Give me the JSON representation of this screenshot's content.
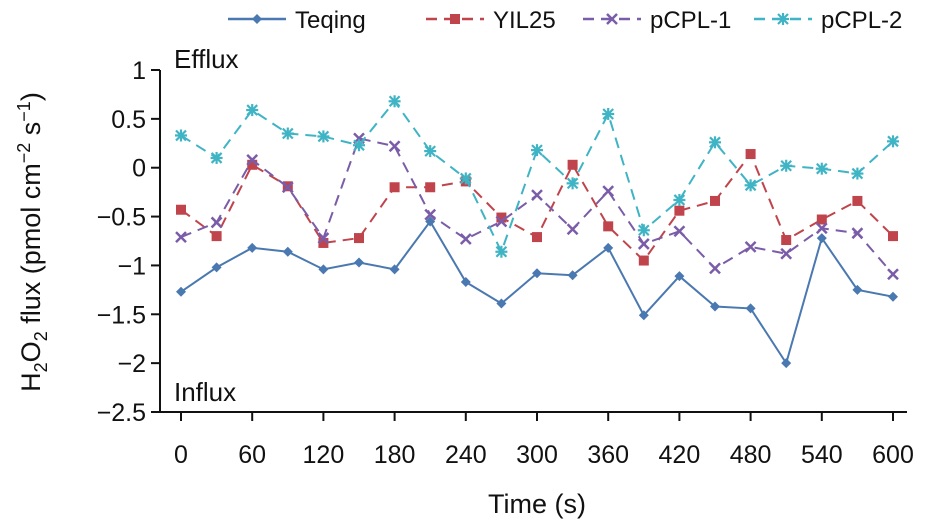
{
  "chart_data": {
    "type": "line",
    "x_label": "Time (s)",
    "y_label_parts": {
      "prefix": "H",
      "sub1": "2",
      "mid": "O",
      "sub2": "2",
      "text": " flux (pmol cm",
      "sup1": "−2",
      "text2": " s",
      "sup2": "−1",
      "end": ")"
    },
    "annotations": {
      "top": "Efflux",
      "bottom": "Influx"
    },
    "xlim": [
      0,
      600
    ],
    "ylim": [
      -2.5,
      1
    ],
    "x_ticks": [
      0,
      60,
      120,
      180,
      240,
      300,
      360,
      420,
      480,
      540,
      600
    ],
    "x_tick_labels": [
      "0",
      "60",
      "120",
      "180",
      "240",
      "300",
      "360",
      "420",
      "480",
      "540",
      "600"
    ],
    "y_ticks": [
      1,
      0.5,
      0,
      -0.5,
      -1,
      -1.5,
      -2,
      -2.5
    ],
    "y_tick_labels": [
      "1",
      "0.5",
      "0",
      "−0.5",
      "−1",
      "−1.5",
      "−2",
      "−2.5"
    ],
    "x": [
      0,
      30,
      60,
      90,
      120,
      150,
      180,
      210,
      240,
      270,
      300,
      330,
      360,
      390,
      420,
      450,
      480,
      510,
      540,
      570,
      600
    ],
    "legend_position": "top",
    "series": [
      {
        "name": "Teqing",
        "color": "#4a78b0",
        "marker": "diamond",
        "dash": "solid",
        "values": [
          -1.27,
          -1.02,
          -0.82,
          -0.86,
          -1.04,
          -0.97,
          -1.04,
          -0.55,
          -1.17,
          -1.39,
          -1.08,
          -1.1,
          -0.82,
          -1.51,
          -1.11,
          -1.42,
          -1.44,
          -2.0,
          -0.72,
          -1.25,
          -1.32
        ]
      },
      {
        "name": "YIL25",
        "color": "#c0444c",
        "marker": "square",
        "dash": "dashed",
        "values": [
          -0.43,
          -0.7,
          0.03,
          -0.19,
          -0.77,
          -0.72,
          -0.2,
          -0.2,
          -0.14,
          -0.51,
          -0.71,
          0.03,
          -0.6,
          -0.95,
          -0.44,
          -0.34,
          0.14,
          -0.74,
          -0.53,
          -0.34,
          -0.7
        ]
      },
      {
        "name": "pCPL-1",
        "color": "#7a5ca8",
        "marker": "x",
        "dash": "dashed",
        "values": [
          -0.71,
          -0.56,
          0.08,
          -0.2,
          -0.72,
          0.3,
          0.22,
          -0.48,
          -0.73,
          -0.55,
          -0.28,
          -0.63,
          -0.24,
          -0.78,
          -0.65,
          -1.03,
          -0.81,
          -0.88,
          -0.62,
          -0.67,
          -1.09
        ]
      },
      {
        "name": "pCPL-2",
        "color": "#3fb4c4",
        "marker": "asterisk",
        "dash": "dashed",
        "values": [
          0.33,
          0.1,
          0.59,
          0.35,
          0.32,
          0.23,
          0.68,
          0.17,
          -0.11,
          -0.86,
          0.18,
          -0.16,
          0.55,
          -0.64,
          -0.33,
          0.26,
          -0.18,
          0.02,
          -0.01,
          -0.06,
          0.27
        ]
      }
    ]
  }
}
